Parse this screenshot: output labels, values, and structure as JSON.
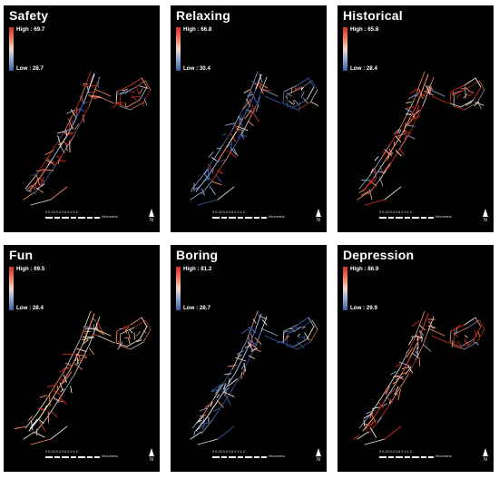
{
  "panels": [
    {
      "title": "Safety",
      "high": "High : 69.7",
      "low": "Low : 28.7",
      "scheme": "safety"
    },
    {
      "title": "Relaxing",
      "high": "High : 66.8",
      "low": "Low : 30.4",
      "scheme": "relaxing"
    },
    {
      "title": "Historical",
      "high": "High : 65.8",
      "low": "Low : 28.4",
      "scheme": "historical"
    },
    {
      "title": "Fun",
      "high": "High : 69.5",
      "low": "Low : 28.4",
      "scheme": "fun"
    },
    {
      "title": "Boring",
      "high": "High : 81.2",
      "low": "Low : 28.7",
      "scheme": "boring"
    },
    {
      "title": "Depression",
      "high": "High : 86.9",
      "low": "Low : 29.9",
      "scheme": "depression"
    }
  ],
  "scale": {
    "ticks": "0  0.15 0.3     0.6       0.9       1.2",
    "unit": "Kilometers"
  },
  "north_label": "N",
  "colors": {
    "high": "#d7301f",
    "mid": "#f4d9cc",
    "low": "#3b5ea8",
    "background": "#000000"
  }
}
